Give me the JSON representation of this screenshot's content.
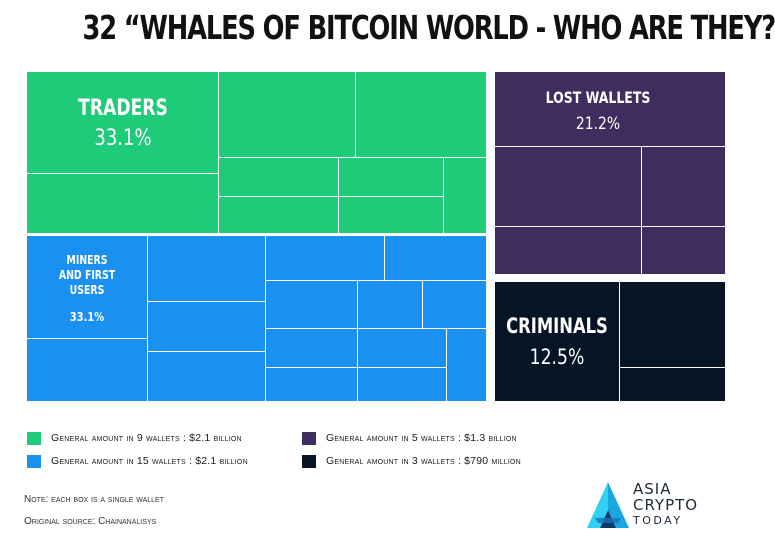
{
  "title": "32 “WHALES OF BITCOIN WORLD - WHO ARE THEY?",
  "chart_data": {
    "type": "treemap",
    "groups": [
      {
        "key": "traders",
        "label_lines": [
          "TRADERS"
        ],
        "percent": "33.1%",
        "percent_value": 33.1,
        "wallets": 9,
        "color": "#1dcb78"
      },
      {
        "key": "miners",
        "label_lines": [
          "MINERS",
          "AND FIRST",
          "USERS"
        ],
        "percent": "33.1%",
        "percent_value": 33.1,
        "wallets": 15,
        "color": "#1a90f0"
      },
      {
        "key": "lost",
        "label_lines": [
          "LOST WALLETS"
        ],
        "percent": "21.2%",
        "percent_value": 21.2,
        "wallets": 5,
        "color": "#3e2d5e"
      },
      {
        "key": "criminals",
        "label_lines": [
          "CRIMINALS"
        ],
        "percent": "12.5%",
        "percent_value": 12.5,
        "wallets": 3,
        "color": "#061426"
      }
    ]
  },
  "legend": [
    {
      "text": "General amount in 9 wallets : $2.1 billion",
      "color": "#1dcb78"
    },
    {
      "text": "General amount in 15 wallets : $2.1 billion",
      "color": "#1a90f0"
    },
    {
      "text": "General amount in 5 wallets : $1.3 billion",
      "color": "#3e2d5e"
    },
    {
      "text": "General amount in 3 wallets : $790 million",
      "color": "#061426"
    }
  ],
  "notes": {
    "note": "Note: each box is a single wallet",
    "source": "Original source: Chainanalisys"
  },
  "logo": {
    "line1": "ASIA",
    "line2": "CRYPTO",
    "line3": "TODAY",
    "icon": "asia-crypto-today-logo-icon"
  }
}
